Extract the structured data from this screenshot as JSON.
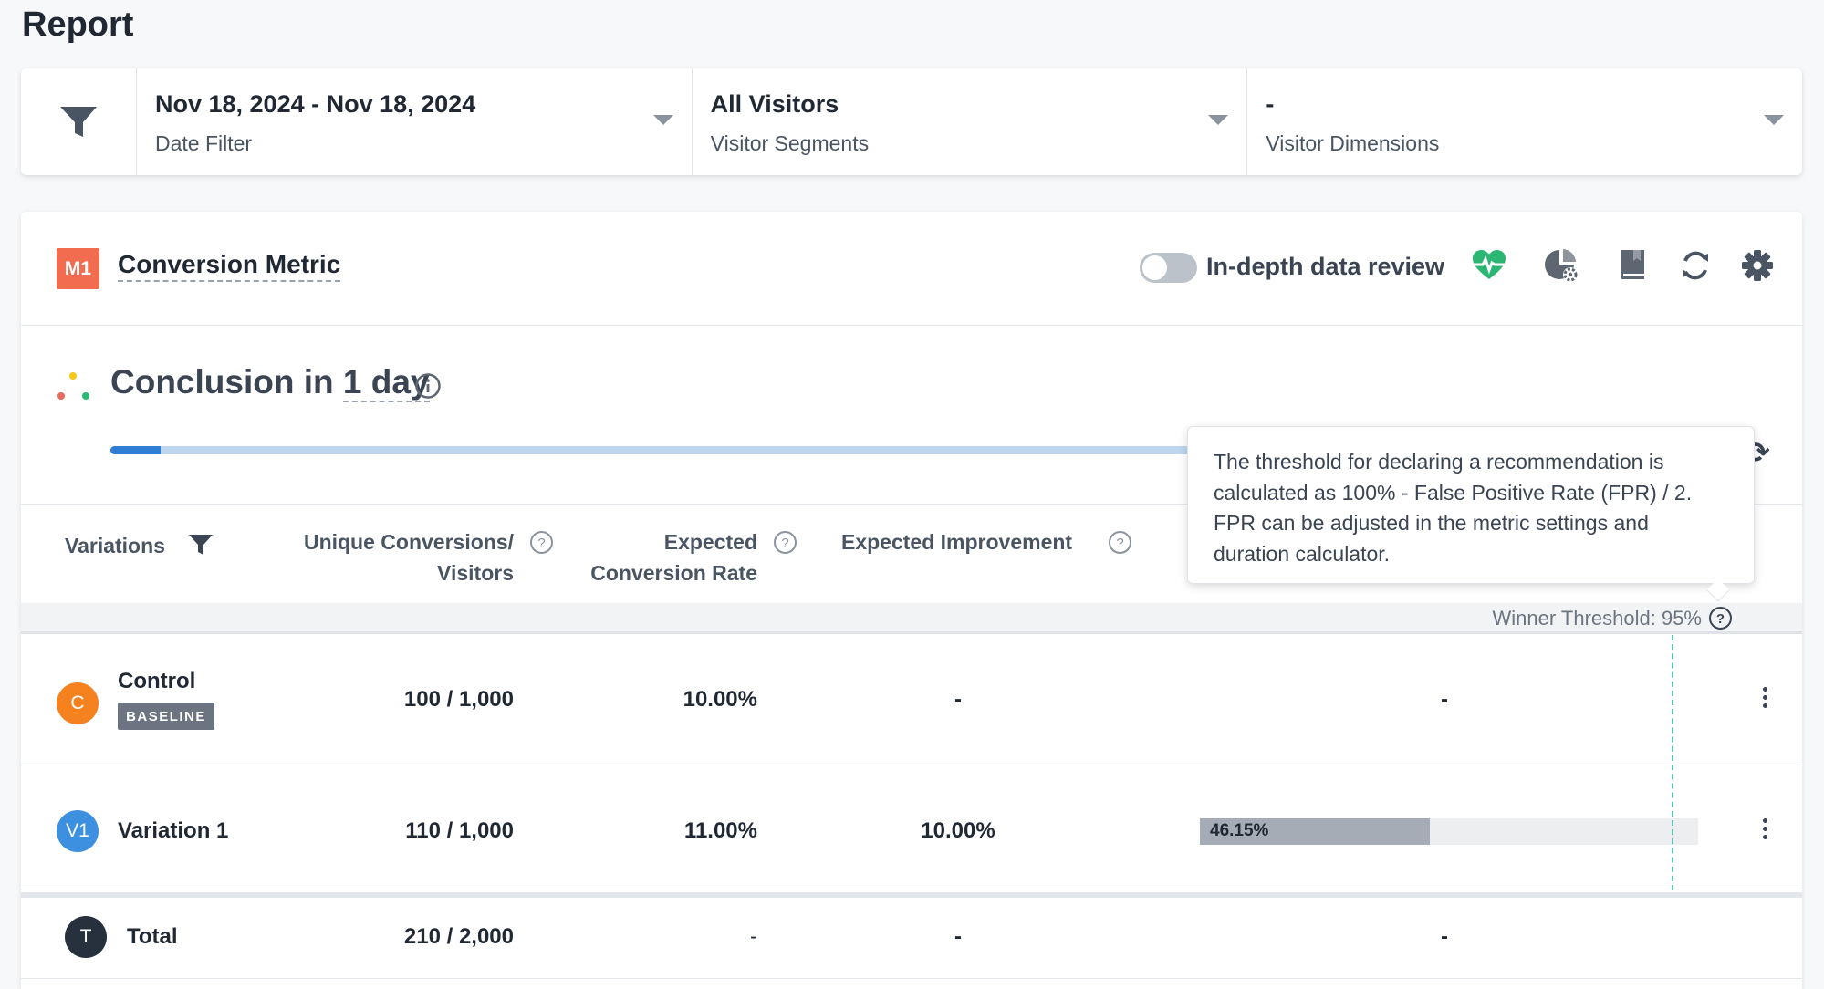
{
  "page": {
    "title": "Report"
  },
  "filters": {
    "date": {
      "value": "Nov 18, 2024 - Nov 18, 2024",
      "label": "Date Filter"
    },
    "segments": {
      "value": "All Visitors",
      "label": "Visitor Segments"
    },
    "dimensions": {
      "value": "-",
      "label": "Visitor Dimensions"
    }
  },
  "metric": {
    "badge": "M1",
    "name": "Conversion Metric",
    "badge_color": "#f26c4f",
    "toggle_label": "In-depth data review",
    "toggle_on": false,
    "header_icons": [
      "heart-monitor-icon",
      "pie-chart-settings-icon",
      "book-icon",
      "refresh-icon",
      "gear-icon"
    ]
  },
  "conclusion": {
    "prefix": "Conclusion in ",
    "duration": "1 day",
    "progress_fraction": 0.045
  },
  "table": {
    "headers": {
      "variations": "Variations",
      "unique_conv_line1": "Unique Conversions/",
      "unique_conv_line2": "Visitors",
      "expected_rate_line1": "Expected",
      "expected_rate_line2": "Conversion Rate",
      "expected_improvement": "Expected Improvement"
    },
    "winner_threshold": "Winner Threshold: 95%",
    "rows": [
      {
        "avatar": "C",
        "avatar_color": "#f5821f",
        "name": "Control",
        "badge": "BASELINE",
        "conversions": "100 / 1,000",
        "rate": "10.00%",
        "improvement": "-",
        "probability": "-"
      },
      {
        "avatar": "V1",
        "avatar_color": "#3d8fe0",
        "name": "Variation 1",
        "conversions": "110 / 1,000",
        "rate": "11.00%",
        "improvement": "10.00%",
        "probability_label": "46.15%",
        "probability_value": 0.4615
      }
    ],
    "total": {
      "avatar": "T",
      "avatar_color": "#26313d",
      "name": "Total",
      "conversions": "210 / 2,000",
      "rate": "-",
      "improvement": "-",
      "probability": "-"
    }
  },
  "tooltip": {
    "text": "The threshold for declaring a recommendation is calculated as 100% - False Positive Rate (FPR) / 2. FPR can be adjusted in the metric settings and duration calculator."
  }
}
